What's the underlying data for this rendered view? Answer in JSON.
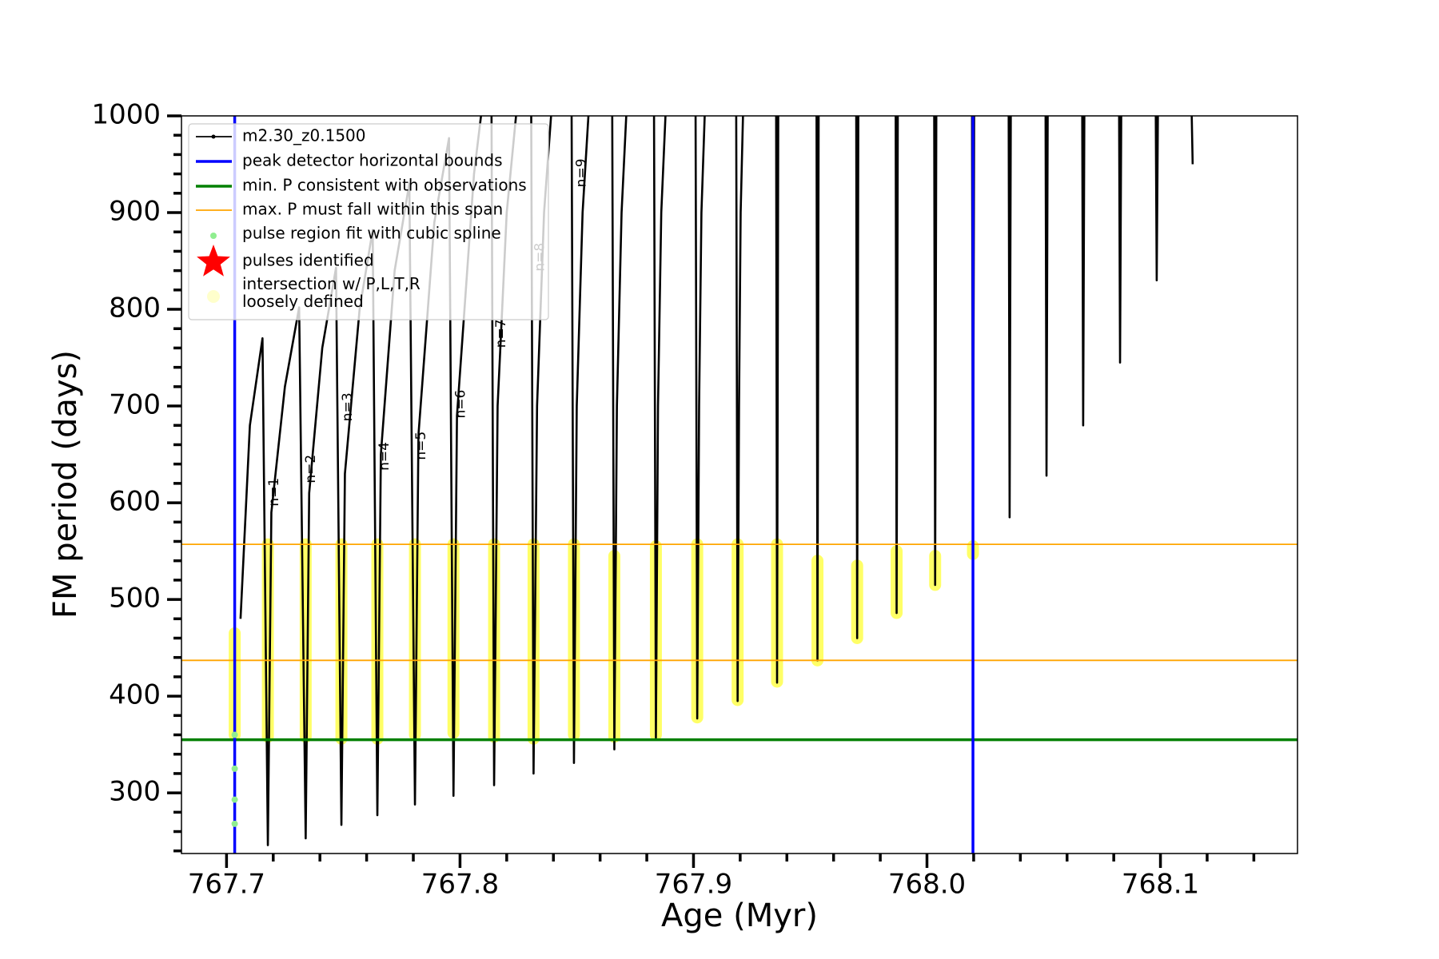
{
  "chart_data": {
    "type": "line",
    "xlabel": "Age (Myr)",
    "ylabel": "FM period (days)",
    "xlim": [
      767.6807,
      768.1587
    ],
    "ylim": [
      237.3,
      1000
    ],
    "xticks": [
      767.7,
      767.8,
      767.9,
      {
        "value": 768.0,
        "label": "768.0"
      },
      768.1
    ],
    "xminorticks": [
      767.72,
      767.74,
      767.76,
      767.78,
      767.82,
      767.84,
      767.86,
      767.88,
      767.92,
      767.94,
      767.96,
      767.98,
      768.02,
      768.04,
      768.06,
      768.08,
      768.12,
      768.14
    ],
    "yticks": [
      300,
      400,
      500,
      600,
      700,
      800,
      900,
      1000
    ],
    "yminorticks": [
      240,
      260,
      280,
      320,
      340,
      360,
      380,
      420,
      440,
      460,
      480,
      520,
      540,
      560,
      580,
      620,
      640,
      660,
      680,
      720,
      740,
      760,
      780,
      820,
      840,
      860,
      880,
      920,
      940,
      960,
      980
    ],
    "legend": "upper left",
    "series": [
      {
        "name": "m2.30_z0.1500",
        "type": "line",
        "color": "#000000",
        "x": [
          767.706,
          767.71,
          767.7154,
          767.7177,
          767.7192,
          767.725,
          767.7311,
          767.7339,
          767.7354,
          767.741,
          767.7469,
          767.7492,
          767.7507,
          767.757,
          767.7626,
          767.7646,
          767.7661,
          767.772,
          767.7783,
          767.7807,
          767.7822,
          767.789,
          767.7953,
          767.7972,
          767.7987,
          767.806,
          767.809,
          null,
          767.8135,
          767.8146,
          767.8161,
          767.82,
          767.824,
          null,
          767.8305,
          767.8315,
          767.833,
          767.836,
          767.839,
          null,
          767.8478,
          767.8488,
          767.85,
          767.8525,
          767.855,
          null,
          767.8652,
          767.8661,
          767.8672,
          767.8692,
          767.8712,
          null,
          767.8831,
          767.8839,
          767.8848,
          767.8862,
          767.888,
          null,
          767.9009,
          767.9016,
          767.9024,
          767.9034,
          767.9048,
          null,
          767.9183,
          767.9189,
          767.9195,
          767.9202,
          767.9212,
          null,
          767.9354,
          767.9358,
          767.9363,
          null,
          767.9527,
          767.9531,
          767.9536,
          null,
          767.9697,
          767.9701,
          767.9706,
          null,
          767.9866,
          767.987,
          767.9875,
          null,
          768.0031,
          768.0035,
          768.004,
          null,
          768.0193,
          768.0197,
          768.0202,
          null,
          768.035,
          768.0354,
          768.0359,
          null,
          768.0508,
          768.0512,
          768.0517,
          null,
          768.0665,
          768.0669,
          768.0674,
          null,
          768.0823,
          768.0827,
          768.0832,
          null,
          768.098,
          768.0984,
          768.0989,
          null,
          768.1134,
          768.1138
        ],
        "values": [
          480,
          680,
          770,
          246,
          590,
          720,
          802,
          253,
          610,
          760,
          843,
          267,
          630,
          800,
          882,
          277,
          650,
          840,
          930,
          288,
          670,
          890,
          977,
          297,
          690,
          940,
          1000,
          null,
          1000,
          308,
          700,
          900,
          1000,
          null,
          1000,
          320,
          700,
          900,
          1000,
          null,
          1000,
          331,
          700,
          900,
          1000,
          null,
          1000,
          345,
          700,
          900,
          1000,
          null,
          1000,
          357,
          700,
          900,
          1000,
          null,
          1000,
          377,
          700,
          900,
          1000,
          null,
          1000,
          395,
          700,
          900,
          1000,
          null,
          1000,
          414,
          1000,
          null,
          1000,
          437,
          1000,
          null,
          1000,
          460,
          1000,
          null,
          1000,
          486,
          1000,
          null,
          1000,
          515,
          1000,
          null,
          1000,
          547,
          1000,
          null,
          1000,
          585,
          1000,
          null,
          1000,
          628,
          1000,
          null,
          1000,
          680,
          1000,
          null,
          1000,
          745,
          1000,
          null,
          1000,
          830,
          1000,
          null,
          1000,
          950
        ]
      },
      {
        "name": "peak detector horizontal bounds",
        "type": "vline",
        "color": "#0000ff",
        "values": [
          767.7035,
          768.0197
        ]
      },
      {
        "name": "min. P consistent with observations",
        "type": "hline",
        "color": "#008000",
        "values": [
          355
        ]
      },
      {
        "name": "max. P must fall within this span",
        "type": "hline",
        "color": "#ffa500",
        "values": [
          557,
          437
        ]
      },
      {
        "name": "pulse region fit with cubic spline",
        "type": "scatter",
        "color": "#90ee90",
        "x": [
          767.7035,
          767.7035,
          767.7035,
          767.7035
        ],
        "values": [
          360,
          325,
          293,
          268
        ]
      },
      {
        "name": "pulses identified",
        "type": "star",
        "color": "#ff0000",
        "x": [],
        "values": []
      },
      {
        "name": "intersection w/ P,L,T,R\nloosely defined",
        "type": "band",
        "color": "#ffff00",
        "x": [
          767.7035,
          767.7177,
          767.7339,
          767.7492,
          767.7646,
          767.7807,
          767.7972,
          767.8146,
          767.8315,
          767.8488,
          767.8661,
          767.8839,
          767.9016,
          767.9189,
          767.9358,
          767.9531,
          767.9701,
          767.987,
          768.0035,
          768.0197
        ],
        "low": [
          360,
          358,
          358,
          356,
          356,
          360,
          362,
          358,
          356,
          360,
          358,
          360,
          378,
          396,
          415,
          437,
          460,
          486,
          515,
          547
        ],
        "high": [
          465,
          557,
          557,
          557,
          557,
          557,
          557,
          557,
          557,
          557,
          545,
          555,
          557,
          557,
          557,
          540,
          535,
          550,
          545,
          555
        ]
      }
    ],
    "annotations": [
      "n=1",
      "n=2",
      "n=3",
      "n=4",
      "n=5",
      "n=6",
      "n=7",
      "n=8",
      "n=9"
    ]
  }
}
